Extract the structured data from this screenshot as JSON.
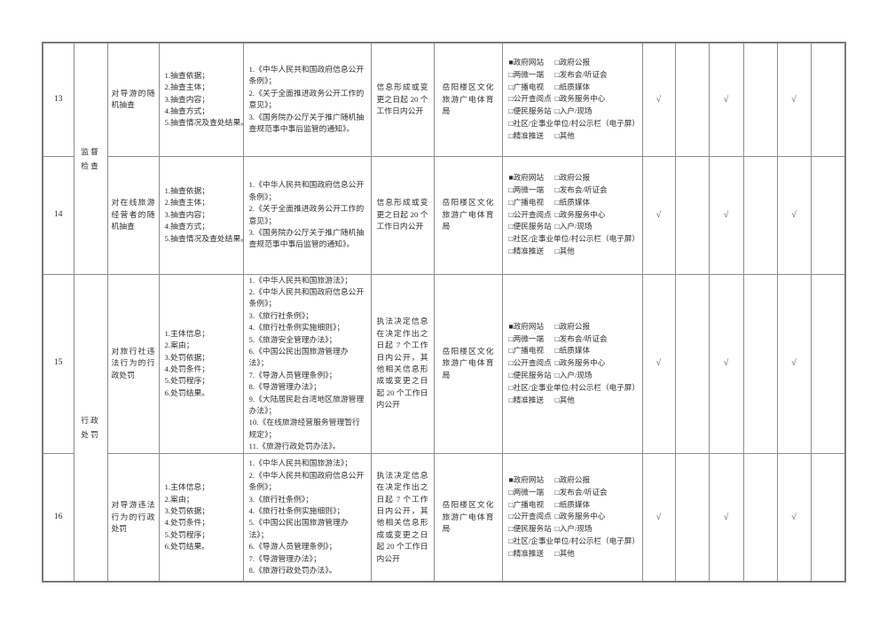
{
  "page": {
    "background": "#ffffff",
    "border_color": "#8d8d8d",
    "check_mark": "√",
    "checked_box": "■",
    "unchecked_box": "□"
  },
  "table": {
    "channels": [
      [
        {
          "checked": true,
          "label": "政府网站"
        },
        {
          "checked": false,
          "label": "政府公报"
        }
      ],
      [
        {
          "checked": false,
          "label": "两微一端"
        },
        {
          "checked": false,
          "label": "发布会/听证会"
        }
      ],
      [
        {
          "checked": false,
          "label": "广播电视"
        },
        {
          "checked": false,
          "label": "纸质媒体"
        }
      ],
      [
        {
          "checked": false,
          "label": "公开查阅点"
        },
        {
          "checked": false,
          "label": "政务服务中心"
        }
      ],
      [
        {
          "checked": false,
          "label": "便民服务站"
        },
        {
          "checked": false,
          "label": "入户/现场"
        }
      ],
      [
        {
          "checked": false,
          "label": "社区/企事业单位/村公示栏（电子屏）"
        }
      ],
      [
        {
          "checked": false,
          "label": "精准推送"
        },
        {
          "checked": false,
          "label": "其他"
        }
      ]
    ],
    "rows": [
      {
        "number": "13",
        "category_lines": [
          "监督",
          "检查"
        ],
        "item": "对导游的随机抽查",
        "content_items": [
          "1.抽查依据；",
          "2.抽查主体；",
          "3.抽查内容；",
          "4.抽查方式；",
          "5.抽查情况及查处结果。"
        ],
        "legal_items": [
          "1.《中华人民共和国政府信息公开条例》；",
          "2.《关于全面推进政务公开工作的意见》；",
          "3.《国务院办公厅关于推广随机抽查规范事中事后监管的通知》。"
        ],
        "deadline": "信息形成或变更之日起 20 个工作日内公开",
        "unit": "岳阳楼区文化旅游广电体育局",
        "checks": [
          "√",
          "",
          "√",
          "",
          "√",
          ""
        ]
      },
      {
        "number": "14",
        "item": "对在线旅游经营者的随机抽查",
        "content_items": [
          "1.抽查依据；",
          "2.抽查主体；",
          "3.抽查内容；",
          "4.抽查方式；",
          "5.抽查情况及查处结果。"
        ],
        "legal_items": [
          "1.《中华人民共和国政府信息公开条例》；",
          "2.《关于全面推进政务公开工作的意见》；",
          "3.《国务院办公厅关于推广随机抽查规范事中事后监管的通知》。"
        ],
        "deadline": "信息形成或变更之日起 20 个工作日内公开",
        "unit": "岳阳楼区文化旅游广电体育局",
        "checks": [
          "√",
          "",
          "√",
          "",
          "√",
          ""
        ]
      },
      {
        "number": "15",
        "category_lines": [
          "行政",
          "处罚"
        ],
        "item": "对旅行社违法行为的行政处罚",
        "content_items": [
          "1.主体信息；",
          "2.案由；",
          "3.处罚依据；",
          "4.处罚条件；",
          "5.处罚程序；",
          "6.处罚结果。"
        ],
        "legal_items": [
          "1.《中华人民共和国旅游法》；",
          "2.《中华人民共和国政府信息公开条例》；",
          "3.《旅行社条例》；",
          "4.《旅行社条例实施细则》；",
          "5.《旅游安全管理办法》；",
          "6.《中国公民出国旅游管理办法》；",
          "7.《导游人员管理条例》；",
          "8.《导游管理办法》；",
          "9.《大陆居民赴台湾地区旅游管理办法》；",
          "10.《在线旅游经营服务管理暂行规定》；",
          "11.《旅游行政处罚办法》。"
        ],
        "deadline": "执法决定信息在决定作出之日起 7 个工作日内公开，其他相关信息形成或变更之日起 20 个工作日内公开",
        "unit": "岳阳楼区文化旅游广电体育局",
        "checks": [
          "√",
          "",
          "√",
          "",
          "√",
          ""
        ]
      },
      {
        "number": "16",
        "item": "对导游违法行为的行政处罚",
        "content_items": [
          "1.主体信息；",
          "2.案由；",
          "3.处罚依据；",
          "4.处罚条件；",
          "5.处罚程序；",
          "6.处罚结果。"
        ],
        "legal_items": [
          "1.《中华人民共和国旅游法》；",
          "2.《中华人民共和国政府信息公开条例》；",
          "3.《旅行社条例》；",
          "4.《旅行社条例实施细则》；",
          "5.《中国公民出国旅游管理办法》；",
          "6.《导游人员管理条例》；",
          "7.《导游管理办法》；",
          "8.《旅游行政处罚办法》。"
        ],
        "deadline": "执法决定信息在决定作出之日起 7 个工作日内公开，其他相关信息形成或变更之日起 20 个工作日内公开",
        "unit": "岳阳楼区文化旅游广电体育局",
        "checks": [
          "√",
          "",
          "√",
          "",
          "√",
          ""
        ]
      }
    ]
  }
}
